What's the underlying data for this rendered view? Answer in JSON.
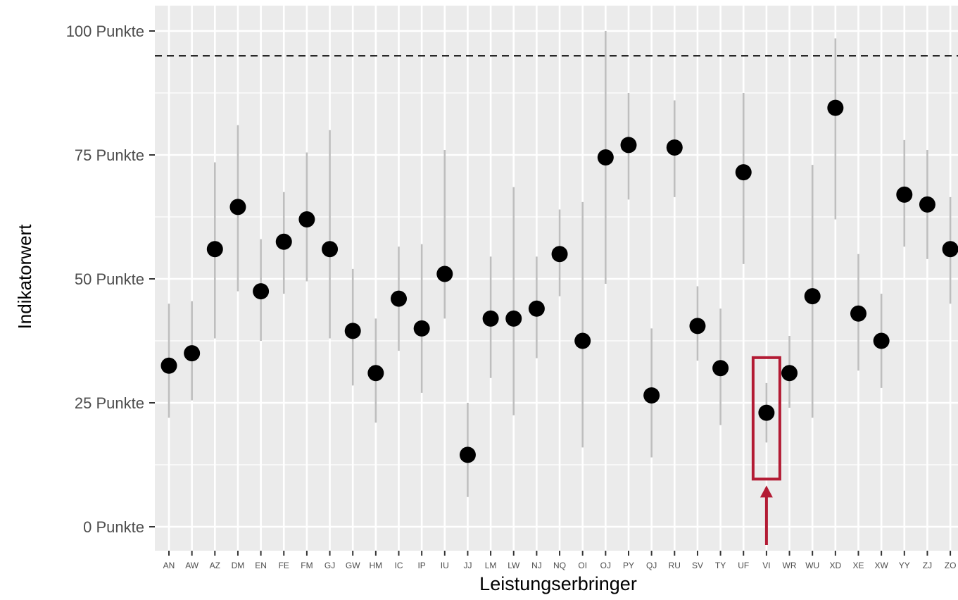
{
  "chart_data": {
    "type": "scatter",
    "title": "",
    "xlabel": "Leistungserbringer",
    "ylabel": "Indikatorwert",
    "ylim": [
      -4,
      105
    ],
    "y_ticks": [
      0,
      25,
      50,
      75,
      100
    ],
    "y_tick_labels": [
      "0 Punkte",
      "25 Punkte",
      "50 Punkte",
      "75 Punkte",
      "100 Punkte"
    ],
    "reference_line": 95,
    "grid": true,
    "background_color": "#ebebeb",
    "point_color": "#000000",
    "errorbar_color": "#bebebe",
    "highlight_color": "#b31b34",
    "highlight_category": "VI",
    "categories": [
      "AN",
      "AW",
      "AZ",
      "DM",
      "EN",
      "FE",
      "FM",
      "GJ",
      "GW",
      "HM",
      "IC",
      "IP",
      "IU",
      "JJ",
      "LM",
      "LW",
      "NJ",
      "NQ",
      "OI",
      "OJ",
      "PY",
      "QJ",
      "RU",
      "SV",
      "TY",
      "UF",
      "VI",
      "WR",
      "WU",
      "XD",
      "XE",
      "XW",
      "YY",
      "ZJ",
      "ZO"
    ],
    "values": [
      32.5,
      35,
      56,
      64.5,
      47.5,
      57.5,
      62,
      56,
      39.5,
      31,
      46,
      40,
      51,
      14.5,
      42,
      42,
      44,
      55,
      37.5,
      74.5,
      77,
      26.5,
      76.5,
      40.5,
      32,
      71.5,
      23,
      31,
      46.5,
      84.5,
      43,
      37.5,
      67,
      65,
      56
    ],
    "lower": [
      22,
      25.5,
      38,
      47.5,
      37.5,
      47,
      49.5,
      38,
      28.5,
      21,
      35.5,
      27,
      42,
      6,
      30,
      22.5,
      34,
      46.5,
      16,
      49,
      66,
      14,
      66.5,
      33.5,
      20.5,
      53,
      17,
      24,
      22,
      62,
      31.5,
      28,
      56.5,
      54,
      45
    ],
    "upper": [
      45,
      45.5,
      73.5,
      81,
      58,
      67.5,
      75.5,
      80,
      52,
      42,
      56.5,
      57,
      76,
      25,
      54.5,
      68.5,
      54.5,
      64,
      65.5,
      100,
      87.5,
      40,
      86,
      48.5,
      44,
      87.5,
      29,
      38.5,
      73,
      98.5,
      55,
      47,
      78,
      76,
      66.5
    ]
  }
}
